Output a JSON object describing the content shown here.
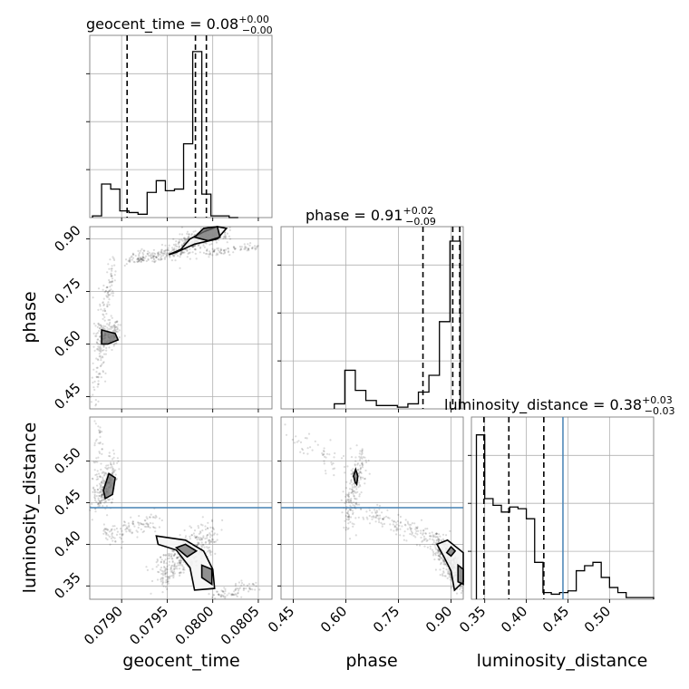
{
  "colors": {
    "truth": "#4682b4",
    "hist": "#000000",
    "grid": "#b0b0b0",
    "density": "#000000"
  },
  "params": [
    {
      "key": "geocent_time",
      "label": "geocent_time",
      "range": [
        0.07865,
        0.08065
      ],
      "ticks": [
        "0.0790",
        "0.0795",
        "0.0800",
        "0.0805"
      ],
      "tick_values": [
        0.079,
        0.0795,
        0.08,
        0.0805
      ],
      "title": {
        "name": "geocent_time",
        "eq": " = ",
        "median": "0.08",
        "plus": "+0.00",
        "minus": "−0.00"
      }
    },
    {
      "key": "phase",
      "label": "phase",
      "range": [
        0.415,
        0.935
      ],
      "ticks": [
        "0.45",
        "0.60",
        "0.75",
        "0.90"
      ],
      "tick_values": [
        0.45,
        0.6,
        0.75,
        0.9
      ],
      "title": {
        "name": "phase",
        "eq": " = ",
        "median": "0.91",
        "plus": "+0.02",
        "minus": "−0.09"
      }
    },
    {
      "key": "luminosity_distance",
      "label": "luminosity_distance",
      "range": [
        0.334,
        0.553
      ],
      "ticks": [
        "0.35",
        "0.40",
        "0.45",
        "0.50"
      ],
      "tick_values": [
        0.35,
        0.4,
        0.45,
        0.5
      ],
      "title": {
        "name": "luminosity_distance",
        "eq": " = ",
        "median": "0.38",
        "plus": "+0.03",
        "minus": "−0.03"
      }
    }
  ],
  "chart_data": {
    "type": "corner",
    "parameters": [
      "geocent_time",
      "phase",
      "luminosity_distance"
    ],
    "truth": {
      "luminosity_distance": 0.444
    },
    "histograms": [
      {
        "param": "geocent_time",
        "bin_edges": [
          0.07868,
          0.07878,
          0.07888,
          0.07898,
          0.07908,
          0.07918,
          0.07928,
          0.07938,
          0.07948,
          0.07958,
          0.07968,
          0.07978,
          0.07988,
          0.07998,
          0.08008,
          0.08018,
          0.08028
        ],
        "counts": [
          0.01,
          0.2,
          0.17,
          0.04,
          0.03,
          0.02,
          0.15,
          0.22,
          0.16,
          0.17,
          0.44,
          0.99,
          0.14,
          0.01,
          0.01,
          0.0
        ],
        "quantiles": [
          0.07906,
          0.07981,
          0.07993
        ]
      },
      {
        "param": "phase",
        "bin_edges": [
          0.567,
          0.597,
          0.627,
          0.657,
          0.687,
          0.717,
          0.747,
          0.777,
          0.807,
          0.837,
          0.867,
          0.897,
          0.927
        ],
        "counts": [
          0.03,
          0.23,
          0.11,
          0.05,
          0.02,
          0.02,
          0.01,
          0.03,
          0.1,
          0.2,
          0.52,
          1.0
        ],
        "quantiles": [
          0.82,
          0.905,
          0.925
        ]
      },
      {
        "param": "luminosity_distance",
        "bin_edges": [
          0.34,
          0.35,
          0.36,
          0.37,
          0.38,
          0.39,
          0.4,
          0.41,
          0.42,
          0.43,
          0.44,
          0.45,
          0.46,
          0.47,
          0.48,
          0.49,
          0.5,
          0.51,
          0.52,
          0.553
        ],
        "counts": [
          0.98,
          0.6,
          0.56,
          0.52,
          0.55,
          0.54,
          0.48,
          0.22,
          0.04,
          0.03,
          0.04,
          0.05,
          0.17,
          0.2,
          0.22,
          0.13,
          0.07,
          0.04,
          0.01
        ],
        "quantiles": [
          0.349,
          0.379,
          0.421
        ]
      }
    ],
    "scatter": [
      {
        "x": "geocent_time",
        "y": "phase",
        "clusters": [
          {
            "x": [
              0.0796,
              0.08012
            ],
            "y": [
              0.87,
              0.93
            ],
            "n": 320,
            "spread": [
              6e-05,
              0.015
            ]
          },
          {
            "x": [
              0.07905,
              0.0796
            ],
            "y": [
              0.84,
              0.86
            ],
            "n": 160,
            "spread": [
              5e-05,
              0.01
            ]
          },
          {
            "x": [
              0.07875,
              0.0789
            ],
            "y": [
              0.62,
              0.82
            ],
            "n": 120,
            "spread": [
              3e-05,
              0.02
            ]
          },
          {
            "x": [
              0.07878,
              0.07895
            ],
            "y": [
              0.6,
              0.65
            ],
            "n": 140,
            "spread": [
              4e-05,
              0.015
            ]
          },
          {
            "x": [
              0.0787,
              0.0788
            ],
            "y": [
              0.45,
              0.58
            ],
            "n": 60,
            "spread": [
              3e-05,
              0.03
            ]
          },
          {
            "x": [
              0.0799,
              0.0805
            ],
            "y": [
              0.86,
              0.88
            ],
            "n": 80,
            "spread": [
              6e-05,
              0.006
            ]
          }
        ],
        "contours": [
          [
            [
              0.07952,
              0.855
            ],
            [
              0.07965,
              0.87
            ],
            [
              0.07975,
              0.9
            ],
            [
              0.0799,
              0.92
            ],
            [
              0.08005,
              0.935
            ],
            [
              0.08015,
              0.93
            ],
            [
              0.08005,
              0.9
            ],
            [
              0.0798,
              0.885
            ],
            [
              0.0796,
              0.862
            ]
          ],
          [
            [
              0.0798,
              0.905
            ],
            [
              0.0799,
              0.93
            ],
            [
              0.08005,
              0.935
            ],
            [
              0.08008,
              0.905
            ],
            [
              0.07995,
              0.895
            ]
          ],
          [
            [
              0.07878,
              0.6
            ],
            [
              0.07878,
              0.64
            ],
            [
              0.07893,
              0.63
            ],
            [
              0.07896,
              0.612
            ],
            [
              0.07885,
              0.6
            ]
          ]
        ]
      },
      {
        "x": "geocent_time",
        "y": "luminosity_distance",
        "clusters": [
          {
            "x": [
              0.07875,
              0.0789
            ],
            "y": [
              0.45,
              0.49
            ],
            "n": 220,
            "spread": [
              4e-05,
              0.01
            ]
          },
          {
            "x": [
              0.07868,
              0.07878
            ],
            "y": [
              0.45,
              0.55
            ],
            "n": 60,
            "spread": [
              3e-05,
              0.02
            ]
          },
          {
            "x": [
              0.0788,
              0.0794
            ],
            "y": [
              0.41,
              0.43
            ],
            "n": 120,
            "spread": [
              5e-05,
              0.006
            ]
          },
          {
            "x": [
              0.0794,
              0.08
            ],
            "y": [
              0.36,
              0.415
            ],
            "n": 380,
            "spread": [
              6e-05,
              0.01
            ]
          },
          {
            "x": [
              0.08,
              0.08045
            ],
            "y": [
              0.338,
              0.35
            ],
            "n": 80,
            "spread": [
              5e-05,
              0.004
            ]
          }
        ],
        "contours": [
          [
            [
              0.07938,
              0.41
            ],
            [
              0.0797,
              0.405
            ],
            [
              0.0799,
              0.392
            ],
            [
              0.08,
              0.37
            ],
            [
              0.08002,
              0.347
            ],
            [
              0.0798,
              0.345
            ],
            [
              0.07975,
              0.372
            ],
            [
              0.0796,
              0.393
            ],
            [
              0.0794,
              0.4
            ]
          ],
          [
            [
              0.0796,
              0.396
            ],
            [
              0.0797,
              0.4
            ],
            [
              0.07982,
              0.392
            ],
            [
              0.07972,
              0.385
            ]
          ],
          [
            [
              0.07988,
              0.36
            ],
            [
              0.07988,
              0.375
            ],
            [
              0.07999,
              0.37
            ],
            [
              0.07999,
              0.352
            ]
          ],
          [
            [
              0.07882,
              0.455
            ],
            [
              0.0788,
              0.465
            ],
            [
              0.07886,
              0.485
            ],
            [
              0.07893,
              0.48
            ],
            [
              0.0789,
              0.46
            ]
          ]
        ]
      },
      {
        "x": "phase",
        "y": "luminosity_distance",
        "clusters": [
          {
            "x": [
              0.43,
              0.6
            ],
            "y": [
              0.53,
              0.5
            ],
            "n": 50,
            "spread": [
              0.02,
              0.01
            ]
          },
          {
            "x": [
              0.6,
              0.645
            ],
            "y": [
              0.43,
              0.5
            ],
            "n": 200,
            "spread": [
              0.01,
              0.012
            ]
          },
          {
            "x": [
              0.645,
              0.86
            ],
            "y": [
              0.44,
              0.405
            ],
            "n": 150,
            "spread": [
              0.015,
              0.006
            ]
          },
          {
            "x": [
              0.86,
              0.935
            ],
            "y": [
              0.4,
              0.35
            ],
            "n": 360,
            "spread": [
              0.01,
              0.01
            ]
          }
        ],
        "contours": [
          [
            [
              0.86,
              0.4
            ],
            [
              0.89,
              0.405
            ],
            [
              0.935,
              0.39
            ],
            [
              0.935,
              0.355
            ],
            [
              0.91,
              0.345
            ],
            [
              0.9,
              0.368
            ],
            [
              0.88,
              0.385
            ]
          ],
          [
            [
              0.888,
              0.39
            ],
            [
              0.9,
              0.397
            ],
            [
              0.912,
              0.392
            ],
            [
              0.9,
              0.386
            ]
          ],
          [
            [
              0.92,
              0.355
            ],
            [
              0.92,
              0.375
            ],
            [
              0.935,
              0.37
            ],
            [
              0.935,
              0.352
            ]
          ],
          [
            [
              0.626,
              0.475
            ],
            [
              0.622,
              0.482
            ],
            [
              0.628,
              0.49
            ],
            [
              0.634,
              0.482
            ],
            [
              0.631,
              0.472
            ]
          ]
        ]
      }
    ]
  }
}
